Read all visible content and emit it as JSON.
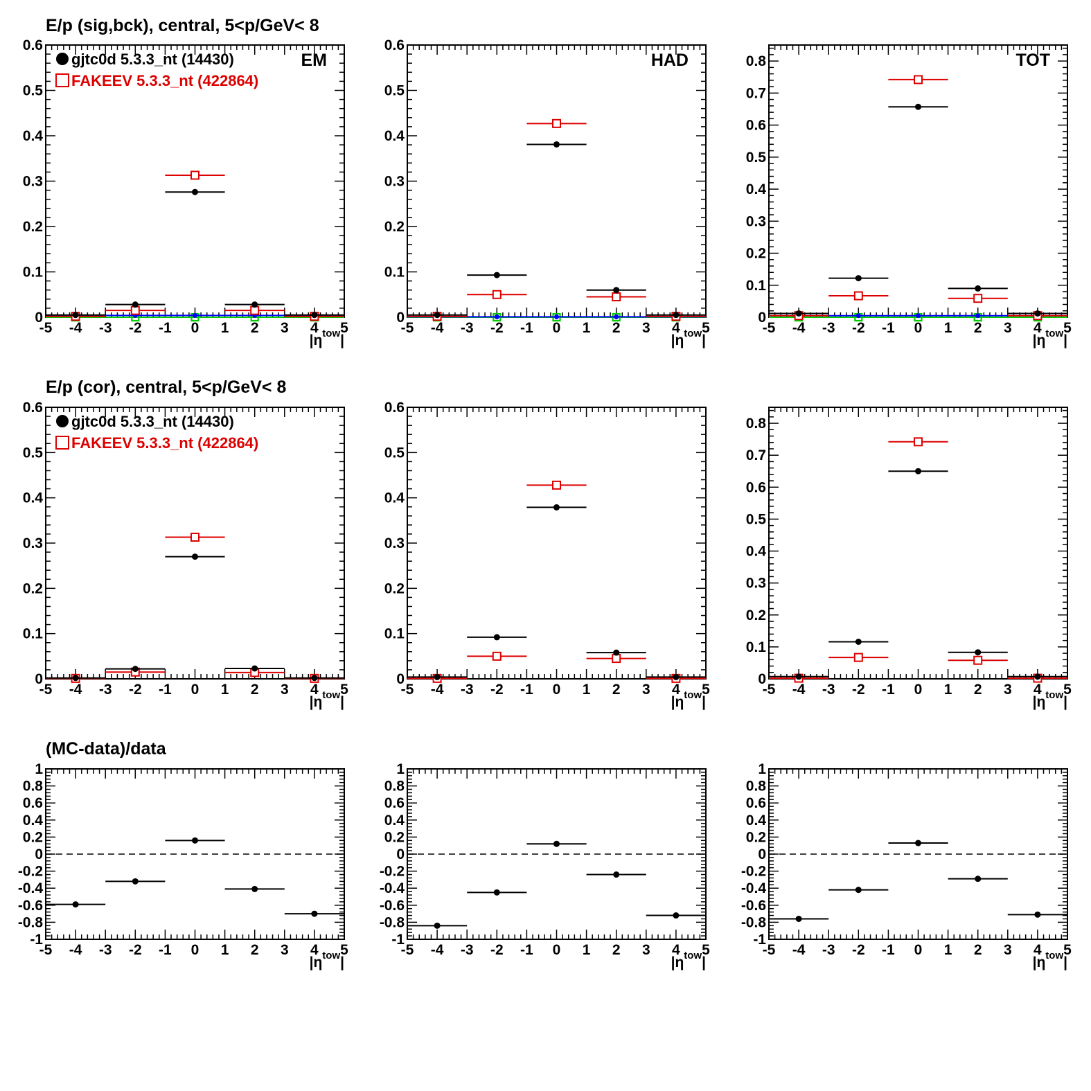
{
  "row_titles": [
    "E/p (sig,bck), central,  5<p/GeV< 8",
    "E/p (cor), central,  5<p/GeV< 8",
    "(MC-data)/data"
  ],
  "x_axis_label": "|η^tow|",
  "x_axis_label_main": "|η",
  "x_axis_label_sup": "tow",
  "x_axis_label_end": "|",
  "legend": {
    "data": {
      "label": "gjtc0d 5.3.3_nt (14430)",
      "color": "#000000",
      "marker": "filled-circle"
    },
    "mc": {
      "label": "FAKEEV 5.3.3_nt (422864)",
      "color": "#dd0000",
      "marker": "open-square"
    }
  },
  "colors": {
    "data": "#000000",
    "mc": "#dd0000",
    "bck_blue": "#0000ff",
    "bck_green": "#00cc00",
    "ref_line": "#000000"
  },
  "chart_data": [
    {
      "type": "scatter",
      "row": 0,
      "col": 0,
      "corner_label": "EM",
      "legend": true,
      "xlim": [
        -5,
        5
      ],
      "ylim": [
        0,
        0.6
      ],
      "xticks": [
        -5,
        -4,
        -3,
        -2,
        -1,
        0,
        1,
        2,
        3,
        4,
        5
      ],
      "yticks": [
        0,
        0.1,
        0.2,
        0.3,
        0.4,
        0.5,
        0.6
      ],
      "x": [
        -4,
        -2,
        0,
        2,
        4
      ],
      "xerr": 1,
      "series": [
        {
          "name": "gjtc0d 5.3.3_nt (14430)",
          "role": "data",
          "values": [
            0.005,
            0.028,
            0.276,
            0.028,
            0.005
          ]
        },
        {
          "name": "FAKEEV 5.3.3_nt (422864)",
          "role": "mc",
          "values": [
            0.002,
            0.015,
            0.313,
            0.015,
            0.002
          ]
        },
        {
          "role": "bck_blue",
          "values": [
            0.004,
            0.004,
            0.004,
            0.004,
            0.004
          ]
        },
        {
          "role": "bck_green",
          "values": [
            0,
            0,
            0,
            0,
            0
          ]
        }
      ]
    },
    {
      "type": "scatter",
      "row": 0,
      "col": 1,
      "corner_label": "HAD",
      "legend": false,
      "xlim": [
        -5,
        5
      ],
      "ylim": [
        0,
        0.6
      ],
      "xticks": [
        -5,
        -4,
        -3,
        -2,
        -1,
        0,
        1,
        2,
        3,
        4,
        5
      ],
      "yticks": [
        0,
        0.1,
        0.2,
        0.3,
        0.4,
        0.5,
        0.6
      ],
      "x": [
        -4,
        -2,
        0,
        2,
        4
      ],
      "xerr": 1,
      "series": [
        {
          "role": "data",
          "values": [
            0.005,
            0.093,
            0.381,
            0.06,
            0.005
          ]
        },
        {
          "role": "mc",
          "values": [
            0.002,
            0.05,
            0.427,
            0.045,
            0.002
          ]
        },
        {
          "role": "bck_blue",
          "values": [
            0.001,
            0.001,
            0.001,
            0.001,
            0.001
          ]
        },
        {
          "role": "bck_green",
          "values": [
            0,
            0,
            0,
            0,
            0
          ]
        }
      ]
    },
    {
      "type": "scatter",
      "row": 0,
      "col": 2,
      "corner_label": "TOT",
      "legend": false,
      "xlim": [
        -5,
        5
      ],
      "ylim": [
        0,
        0.85
      ],
      "xticks": [
        -5,
        -4,
        -3,
        -2,
        -1,
        0,
        1,
        2,
        3,
        4,
        5
      ],
      "yticks": [
        0,
        0.1,
        0.2,
        0.3,
        0.4,
        0.5,
        0.6,
        0.7,
        0.8
      ],
      "x": [
        -4,
        -2,
        0,
        2,
        4
      ],
      "xerr": 1,
      "series": [
        {
          "role": "data",
          "values": [
            0.012,
            0.122,
            0.657,
            0.09,
            0.012
          ]
        },
        {
          "role": "mc",
          "values": [
            0.005,
            0.067,
            0.742,
            0.059,
            0.005
          ]
        },
        {
          "role": "bck_blue",
          "values": [
            0.005,
            0.005,
            0.005,
            0.005,
            0.005
          ]
        },
        {
          "role": "bck_green",
          "values": [
            0,
            0,
            0,
            0,
            0
          ]
        }
      ]
    },
    {
      "type": "scatter",
      "row": 1,
      "col": 0,
      "corner_label": "",
      "legend": true,
      "xlim": [
        -5,
        5
      ],
      "ylim": [
        0,
        0.6
      ],
      "xticks": [
        -5,
        -4,
        -3,
        -2,
        -1,
        0,
        1,
        2,
        3,
        4,
        5
      ],
      "yticks": [
        0,
        0.1,
        0.2,
        0.3,
        0.4,
        0.5,
        0.6
      ],
      "x": [
        -4,
        -2,
        0,
        2,
        4
      ],
      "xerr": 1,
      "series": [
        {
          "role": "data",
          "values": [
            0.002,
            0.022,
            0.27,
            0.023,
            0.002
          ]
        },
        {
          "role": "mc",
          "values": [
            0.001,
            0.015,
            0.313,
            0.014,
            0.001
          ]
        }
      ]
    },
    {
      "type": "scatter",
      "row": 1,
      "col": 1,
      "corner_label": "",
      "legend": false,
      "xlim": [
        -5,
        5
      ],
      "ylim": [
        0,
        0.6
      ],
      "xticks": [
        -5,
        -4,
        -3,
        -2,
        -1,
        0,
        1,
        2,
        3,
        4,
        5
      ],
      "yticks": [
        0,
        0.1,
        0.2,
        0.3,
        0.4,
        0.5,
        0.6
      ],
      "x": [
        -4,
        -2,
        0,
        2,
        4
      ],
      "xerr": 1,
      "series": [
        {
          "role": "data",
          "values": [
            0.004,
            0.092,
            0.379,
            0.058,
            0.004
          ]
        },
        {
          "role": "mc",
          "values": [
            0.001,
            0.05,
            0.428,
            0.045,
            0.001
          ]
        }
      ]
    },
    {
      "type": "scatter",
      "row": 1,
      "col": 2,
      "corner_label": "",
      "legend": false,
      "xlim": [
        -5,
        5
      ],
      "ylim": [
        0,
        0.85
      ],
      "xticks": [
        -5,
        -4,
        -3,
        -2,
        -1,
        0,
        1,
        2,
        3,
        4,
        5
      ],
      "yticks": [
        0,
        0.1,
        0.2,
        0.3,
        0.4,
        0.5,
        0.6,
        0.7,
        0.8
      ],
      "x": [
        -4,
        -2,
        0,
        2,
        4
      ],
      "xerr": 1,
      "series": [
        {
          "role": "data",
          "values": [
            0.007,
            0.116,
            0.65,
            0.083,
            0.007
          ]
        },
        {
          "role": "mc",
          "values": [
            0.002,
            0.067,
            0.742,
            0.058,
            0.002
          ]
        }
      ]
    },
    {
      "type": "scatter",
      "row": 2,
      "col": 0,
      "corner_label": "",
      "legend": false,
      "ref_line": 0,
      "xlim": [
        -5,
        5
      ],
      "ylim": [
        -1,
        1
      ],
      "xticks": [
        -5,
        -4,
        -3,
        -2,
        -1,
        0,
        1,
        2,
        3,
        4,
        5
      ],
      "yticks": [
        -1,
        -0.8,
        -0.6,
        -0.4,
        -0.2,
        0,
        0.2,
        0.4,
        0.6,
        0.8,
        1
      ],
      "x": [
        -4,
        -2,
        0,
        2,
        4
      ],
      "xerr": 1,
      "series": [
        {
          "role": "data",
          "values": [
            -0.59,
            -0.32,
            0.16,
            -0.41,
            -0.7
          ]
        }
      ]
    },
    {
      "type": "scatter",
      "row": 2,
      "col": 1,
      "corner_label": "",
      "legend": false,
      "ref_line": 0,
      "xlim": [
        -5,
        5
      ],
      "ylim": [
        -1,
        1
      ],
      "xticks": [
        -5,
        -4,
        -3,
        -2,
        -1,
        0,
        1,
        2,
        3,
        4,
        5
      ],
      "yticks": [
        -1,
        -0.8,
        -0.6,
        -0.4,
        -0.2,
        0,
        0.2,
        0.4,
        0.6,
        0.8,
        1
      ],
      "x": [
        -4,
        -2,
        0,
        2,
        4
      ],
      "xerr": 1,
      "series": [
        {
          "role": "data",
          "values": [
            -0.84,
            -0.45,
            0.12,
            -0.24,
            -0.72
          ]
        }
      ]
    },
    {
      "type": "scatter",
      "row": 2,
      "col": 2,
      "corner_label": "",
      "legend": false,
      "ref_line": 0,
      "xlim": [
        -5,
        5
      ],
      "ylim": [
        -1,
        1
      ],
      "xticks": [
        -5,
        -4,
        -3,
        -2,
        -1,
        0,
        1,
        2,
        3,
        4,
        5
      ],
      "yticks": [
        -1,
        -0.8,
        -0.6,
        -0.4,
        -0.2,
        0,
        0.2,
        0.4,
        0.6,
        0.8,
        1
      ],
      "x": [
        -4,
        -2,
        0,
        2,
        4
      ],
      "xerr": 1,
      "series": [
        {
          "role": "data",
          "values": [
            -0.76,
            -0.42,
            0.13,
            -0.29,
            -0.71
          ]
        }
      ]
    }
  ]
}
